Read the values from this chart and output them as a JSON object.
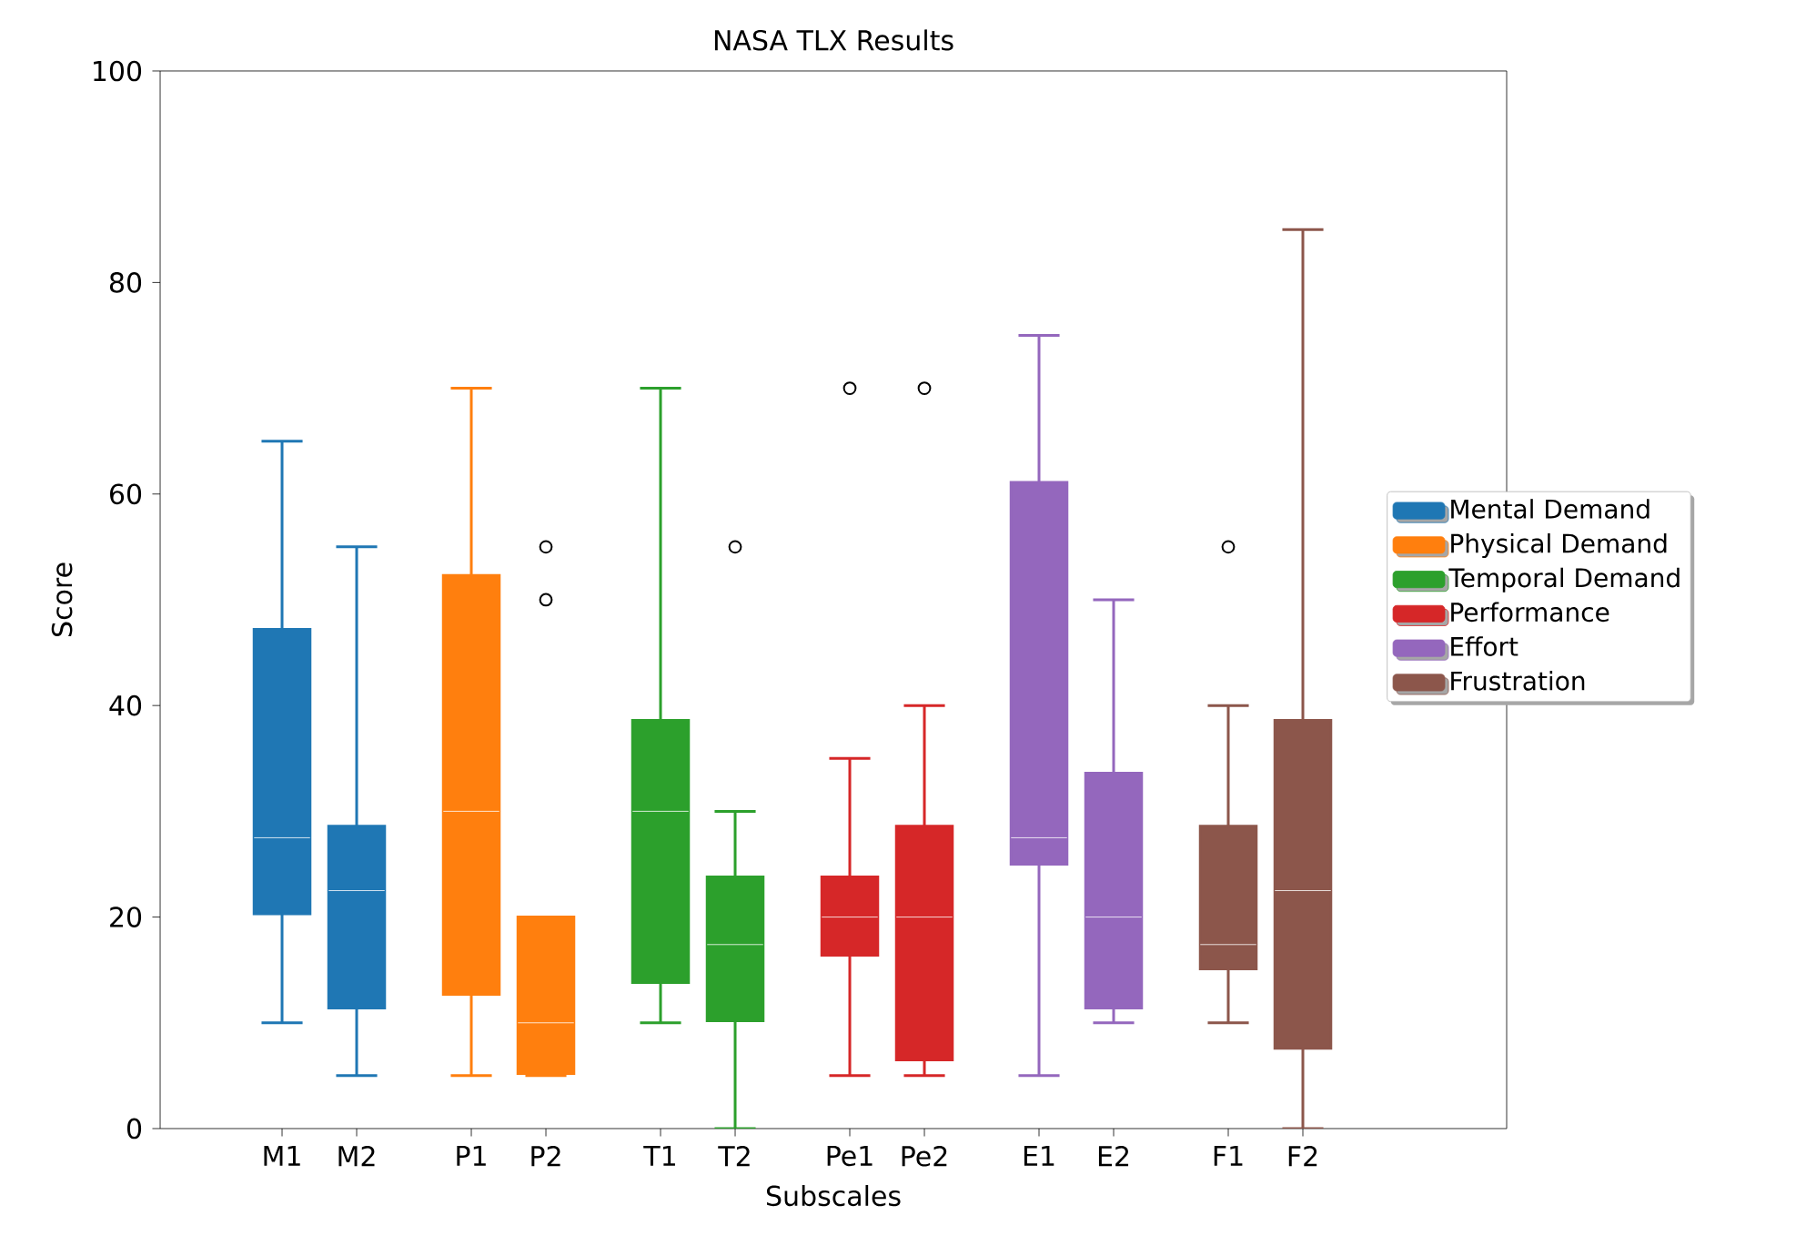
{
  "chart_data": {
    "type": "box",
    "title": "NASA TLX Results",
    "xlabel": "Subscales",
    "ylabel": "Score",
    "categories": [
      "M1",
      "M2",
      "P1",
      "P2",
      "T1",
      "T2",
      "Pe1",
      "Pe2",
      "E1",
      "E2",
      "F1",
      "F2"
    ],
    "ylim": [
      0,
      100
    ],
    "yticks": [
      0,
      20,
      40,
      60,
      80,
      100
    ],
    "legend": "right",
    "grid": false,
    "series": [
      {
        "name": "Mental Demand",
        "color": "#1f77b4",
        "boxes": [
          {
            "low": 10,
            "q1": 20.3,
            "median": 27.5,
            "q3": 47.2,
            "high": 65
          },
          {
            "low": 5,
            "q1": 11.4,
            "median": 22.5,
            "q3": 28.6,
            "high": 55
          },
          null,
          null,
          null,
          null,
          null,
          null,
          null,
          null,
          null,
          null
        ]
      },
      {
        "name": "Physical Demand",
        "color": "#ff7f0e",
        "boxes": [
          null,
          null,
          {
            "low": 5,
            "q1": 12.7,
            "median": 30,
            "q3": 52.3,
            "high": 70
          },
          {
            "low": 5,
            "q1": 5.2,
            "median": 10,
            "q3": 20,
            "high": 20,
            "outliers": [
              50,
              55
            ]
          },
          null,
          null,
          null,
          null,
          null,
          null,
          null,
          null
        ]
      },
      {
        "name": "Temporal Demand",
        "color": "#2ca02c",
        "boxes": [
          null,
          null,
          null,
          null,
          {
            "low": 10,
            "q1": 13.8,
            "median": 30,
            "q3": 38.6,
            "high": 70
          },
          {
            "low": 0,
            "q1": 10.2,
            "median": 17.4,
            "q3": 23.8,
            "high": 30,
            "outliers": [
              55
            ]
          },
          null,
          null,
          null,
          null,
          null,
          null
        ]
      },
      {
        "name": "Performance",
        "color": "#d62728",
        "boxes": [
          null,
          null,
          null,
          null,
          null,
          null,
          {
            "low": 5,
            "q1": 16.4,
            "median": 20,
            "q3": 23.8,
            "high": 35,
            "outliers": [
              70
            ]
          },
          {
            "low": 5,
            "q1": 6.5,
            "median": 20,
            "q3": 28.6,
            "high": 40,
            "outliers": [
              70
            ]
          },
          null,
          null,
          null,
          null
        ]
      },
      {
        "name": "Effort",
        "color": "#9467bd",
        "boxes": [
          null,
          null,
          null,
          null,
          null,
          null,
          null,
          null,
          {
            "low": 5,
            "q1": 25,
            "median": 27.5,
            "q3": 61.1,
            "high": 75
          },
          {
            "low": 10,
            "q1": 11.4,
            "median": 20,
            "q3": 33.6,
            "high": 50
          },
          null,
          null
        ]
      },
      {
        "name": "Frustration",
        "color": "#8c564b",
        "boxes": [
          null,
          null,
          null,
          null,
          null,
          null,
          null,
          null,
          null,
          null,
          {
            "low": 10,
            "q1": 15.1,
            "median": 17.4,
            "q3": 28.6,
            "high": 40,
            "outliers": [
              55
            ]
          },
          {
            "low": 0,
            "q1": 7.6,
            "median": 22.5,
            "q3": 38.6,
            "high": 85
          }
        ]
      }
    ]
  }
}
